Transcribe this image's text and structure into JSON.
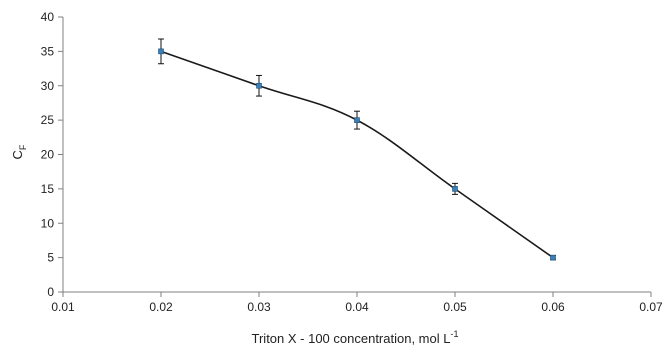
{
  "chart_data": {
    "type": "line",
    "title": "",
    "xlabel": {
      "main": "Triton X  - 100 concentration, mol L",
      "sup": "-1"
    },
    "ylabel": {
      "main": "C",
      "sub": "F"
    },
    "x": [
      0.02,
      0.03,
      0.04,
      0.05,
      0.06
    ],
    "series": [
      {
        "values": [
          35,
          30,
          25,
          15,
          5
        ],
        "error": [
          1.8,
          1.5,
          1.3,
          0.8,
          0.3
        ]
      }
    ],
    "xlim": [
      0.01,
      0.07
    ],
    "ylim": [
      0,
      40
    ],
    "xticks": [
      "0.01",
      "0.02",
      "0.03",
      "0.04",
      "0.05",
      "0.06",
      "0.07"
    ],
    "yticks": [
      "0",
      "5",
      "10",
      "15",
      "20",
      "25",
      "30",
      "35",
      "40"
    ],
    "grid": false,
    "legend": "none",
    "colors": {
      "line": "#1a1a1a",
      "marker": "#3a7fb5",
      "axis": "#808080"
    }
  }
}
